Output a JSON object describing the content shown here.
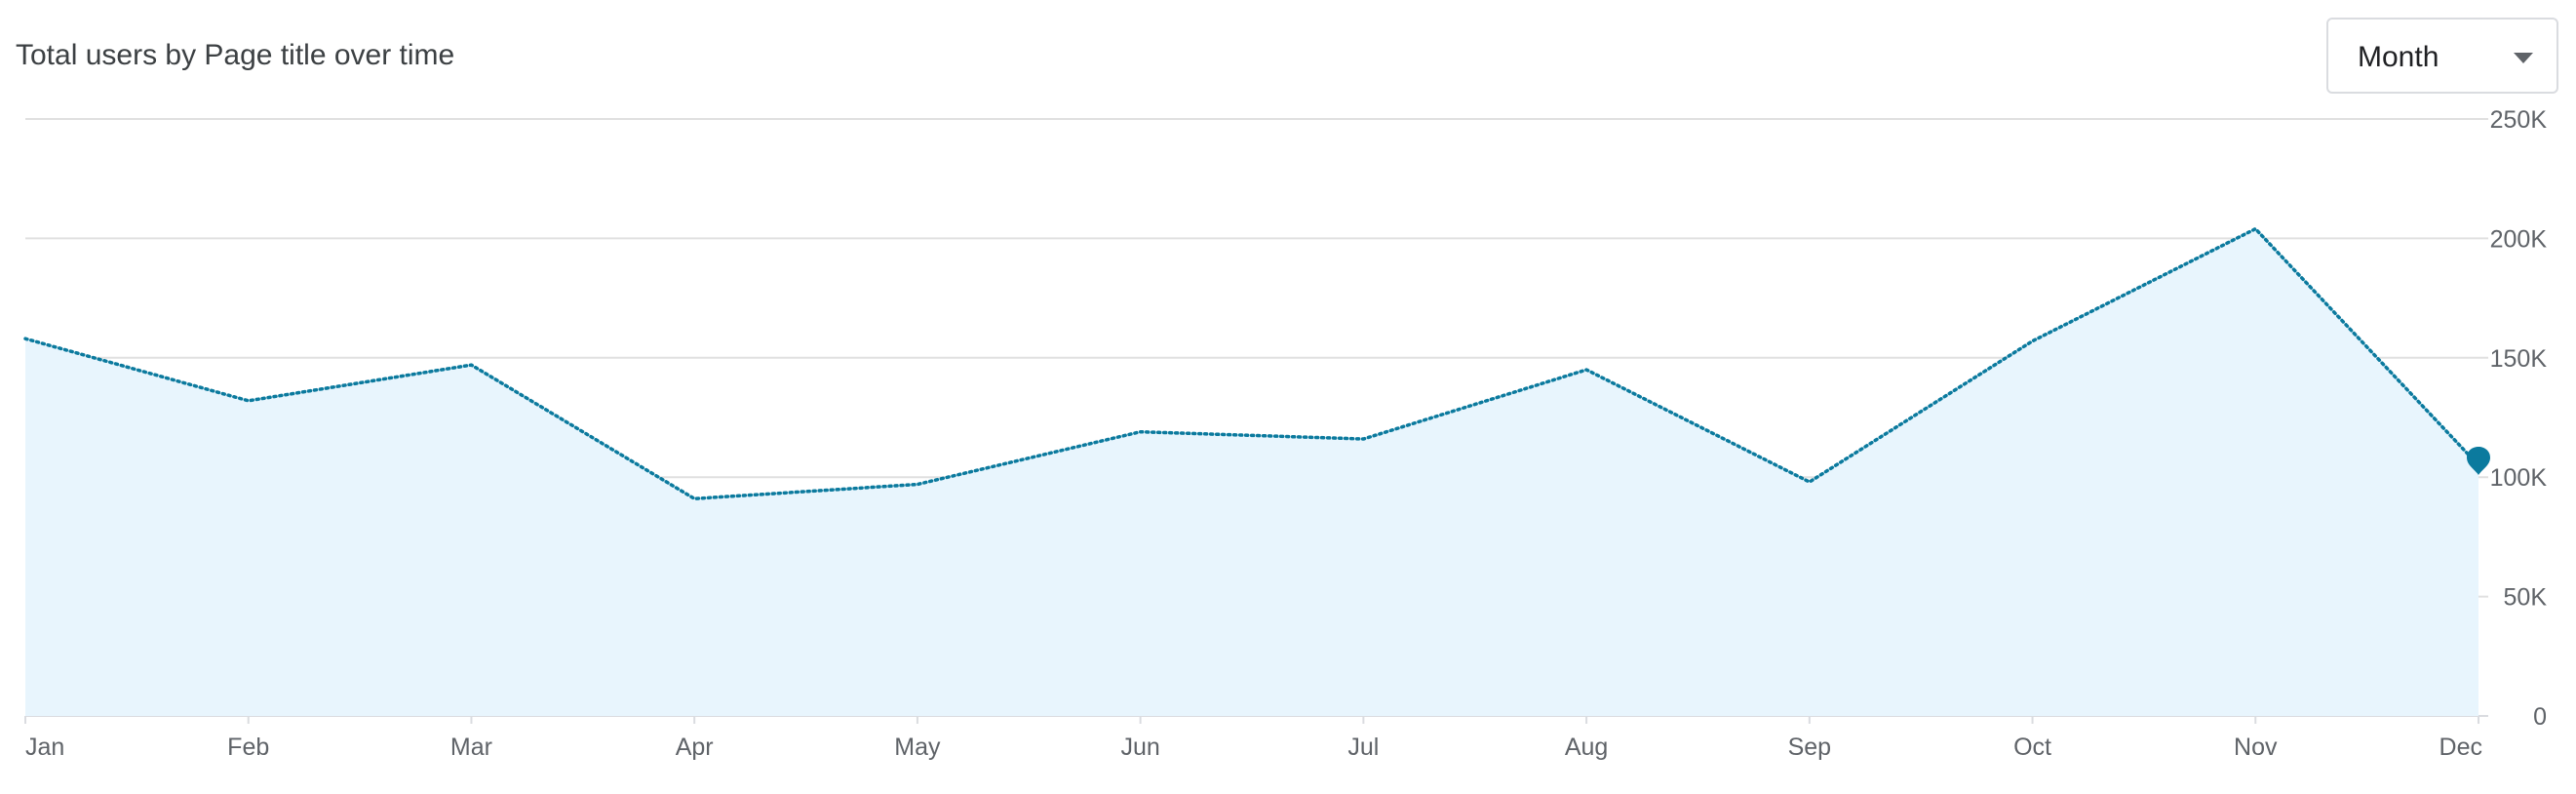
{
  "header": {
    "title": "Total users by Page title over time",
    "granularity": "Month"
  },
  "icons": {
    "dropdown": "caret-down-icon",
    "last_point": "map-pin-icon"
  },
  "colors": {
    "line": "#0b7a9e",
    "area_fill": "#e8f5fd",
    "marker": "#0b7a9e",
    "grid": "#e0e0e0"
  },
  "chart_data": {
    "type": "area",
    "title": "Total users by Page title over time",
    "categories": [
      "Jan",
      "Feb",
      "Mar",
      "Apr",
      "May",
      "Jun",
      "Jul",
      "Aug",
      "Sep",
      "Oct",
      "Nov",
      "Dec"
    ],
    "series": [
      {
        "values": [
          158000,
          132000,
          147000,
          91000,
          97000,
          119000,
          116000,
          145000,
          98000,
          157000,
          204000,
          105000
        ]
      }
    ],
    "y_ticks": [
      {
        "value": 0,
        "label": "0"
      },
      {
        "value": 50000,
        "label": "50K"
      },
      {
        "value": 100000,
        "label": "100K"
      },
      {
        "value": 150000,
        "label": "150K"
      },
      {
        "value": 200000,
        "label": "200K"
      },
      {
        "value": 250000,
        "label": "250K"
      }
    ],
    "ylim": [
      0,
      250000
    ],
    "line_style": "dotted",
    "grid": true,
    "y_axis_side": "right",
    "xlabel": "",
    "ylabel": ""
  }
}
